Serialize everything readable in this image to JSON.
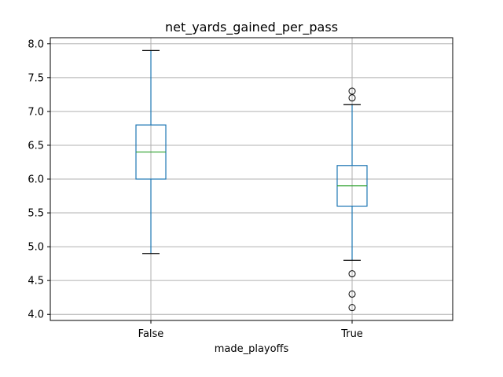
{
  "chart_data": {
    "type": "box",
    "title": "net_yards_gained_per_pass",
    "xlabel": "made_playoffs",
    "ylabel": "",
    "categories": [
      "False",
      "True"
    ],
    "ylim": [
      3.91,
      8.09
    ],
    "yticks": [
      "4.0",
      "4.5",
      "5.0",
      "5.5",
      "6.0",
      "6.5",
      "7.0",
      "7.5",
      "8.0"
    ],
    "grid": true,
    "boxes": [
      {
        "category": "False",
        "whisker_low": 4.9,
        "q1": 6.0,
        "median": 6.4,
        "q3": 6.8,
        "whisker_high": 7.9,
        "outliers": []
      },
      {
        "category": "True",
        "whisker_low": 4.8,
        "q1": 5.6,
        "median": 5.9,
        "q3": 6.2,
        "whisker_high": 7.1,
        "outliers": [
          4.1,
          4.3,
          4.6,
          7.2,
          7.3
        ]
      }
    ],
    "colors": {
      "box": "#1f77b4",
      "median": "#2ca02c",
      "grid": "#b0b0b0",
      "outlier": "#000000"
    }
  }
}
